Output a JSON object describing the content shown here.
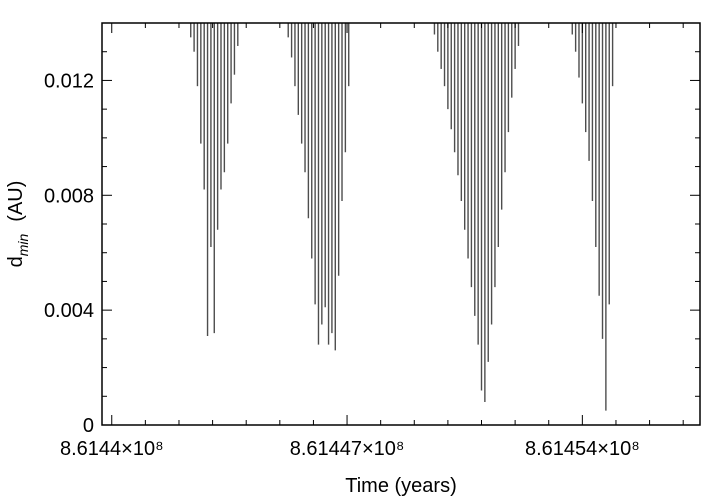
{
  "chart_data": {
    "type": "bar",
    "title": "",
    "xlabel": "Time (years)",
    "ylabel_main": "d",
    "ylabel_sub": "min",
    "ylabel_unit": "(AU)",
    "xlim": [
      861439710,
      861457500
    ],
    "ylim": [
      0,
      0.014
    ],
    "grid": false,
    "x_ticks": [
      {
        "value": 861440000,
        "label": "8.6144×10⁸"
      },
      {
        "value": 861447000,
        "label": "8.61447×10⁸"
      },
      {
        "value": 861454000,
        "label": "8.61454×10⁸"
      }
    ],
    "y_ticks": [
      {
        "value": 0,
        "label": "0"
      },
      {
        "value": 0.004,
        "label": "0.004"
      },
      {
        "value": 0.008,
        "label": "0.008"
      },
      {
        "value": 0.012,
        "label": "0.012"
      }
    ],
    "series": [
      {
        "color": "#4d4d4d",
        "x": [
          861442350,
          861442450,
          861442550,
          861442650,
          861442750,
          861442850,
          861442950,
          861443050,
          861443150,
          861443250,
          861443350,
          861443450,
          861443550,
          861443650,
          861443750,
          861445250,
          861445350,
          861445450,
          861445550,
          861445650,
          861445750,
          861445850,
          861445950,
          861446050,
          861446150,
          861446250,
          861446350,
          861446450,
          861446550,
          861446650,
          861446750,
          861446850,
          861446950,
          861447050,
          861449600,
          861449700,
          861449800,
          861449900,
          861450000,
          861450100,
          861450200,
          861450300,
          861450400,
          861450500,
          861450600,
          861450700,
          861450800,
          861450900,
          861451000,
          861451100,
          861451200,
          861451300,
          861451400,
          861451500,
          861451600,
          861451700,
          861451800,
          861451900,
          861452000,
          861452100,
          861453700,
          861453800,
          861453900,
          861454000,
          861454100,
          861454200,
          861454300,
          861454400,
          861454500,
          861454600,
          861454700,
          861454800,
          861454900
        ],
        "values": [
          0.0135,
          0.013,
          0.0118,
          0.0098,
          0.0082,
          0.0031,
          0.0062,
          0.0032,
          0.0068,
          0.0082,
          0.0088,
          0.0098,
          0.0112,
          0.0122,
          0.0132,
          0.0135,
          0.0128,
          0.0118,
          0.0108,
          0.0098,
          0.0088,
          0.0072,
          0.0058,
          0.0042,
          0.0028,
          0.0035,
          0.0041,
          0.0028,
          0.0032,
          0.0026,
          0.0052,
          0.0078,
          0.0095,
          0.0118,
          0.0136,
          0.013,
          0.0124,
          0.0118,
          0.011,
          0.0103,
          0.0095,
          0.0087,
          0.0078,
          0.0068,
          0.0058,
          0.0048,
          0.0038,
          0.0028,
          0.0012,
          0.0008,
          0.0022,
          0.0035,
          0.0048,
          0.0062,
          0.0075,
          0.0088,
          0.0102,
          0.0114,
          0.0124,
          0.0132,
          0.0136,
          0.013,
          0.0121,
          0.0112,
          0.0102,
          0.0092,
          0.0078,
          0.0062,
          0.0045,
          0.003,
          0.0005,
          0.0042,
          0.0118
        ]
      }
    ]
  }
}
